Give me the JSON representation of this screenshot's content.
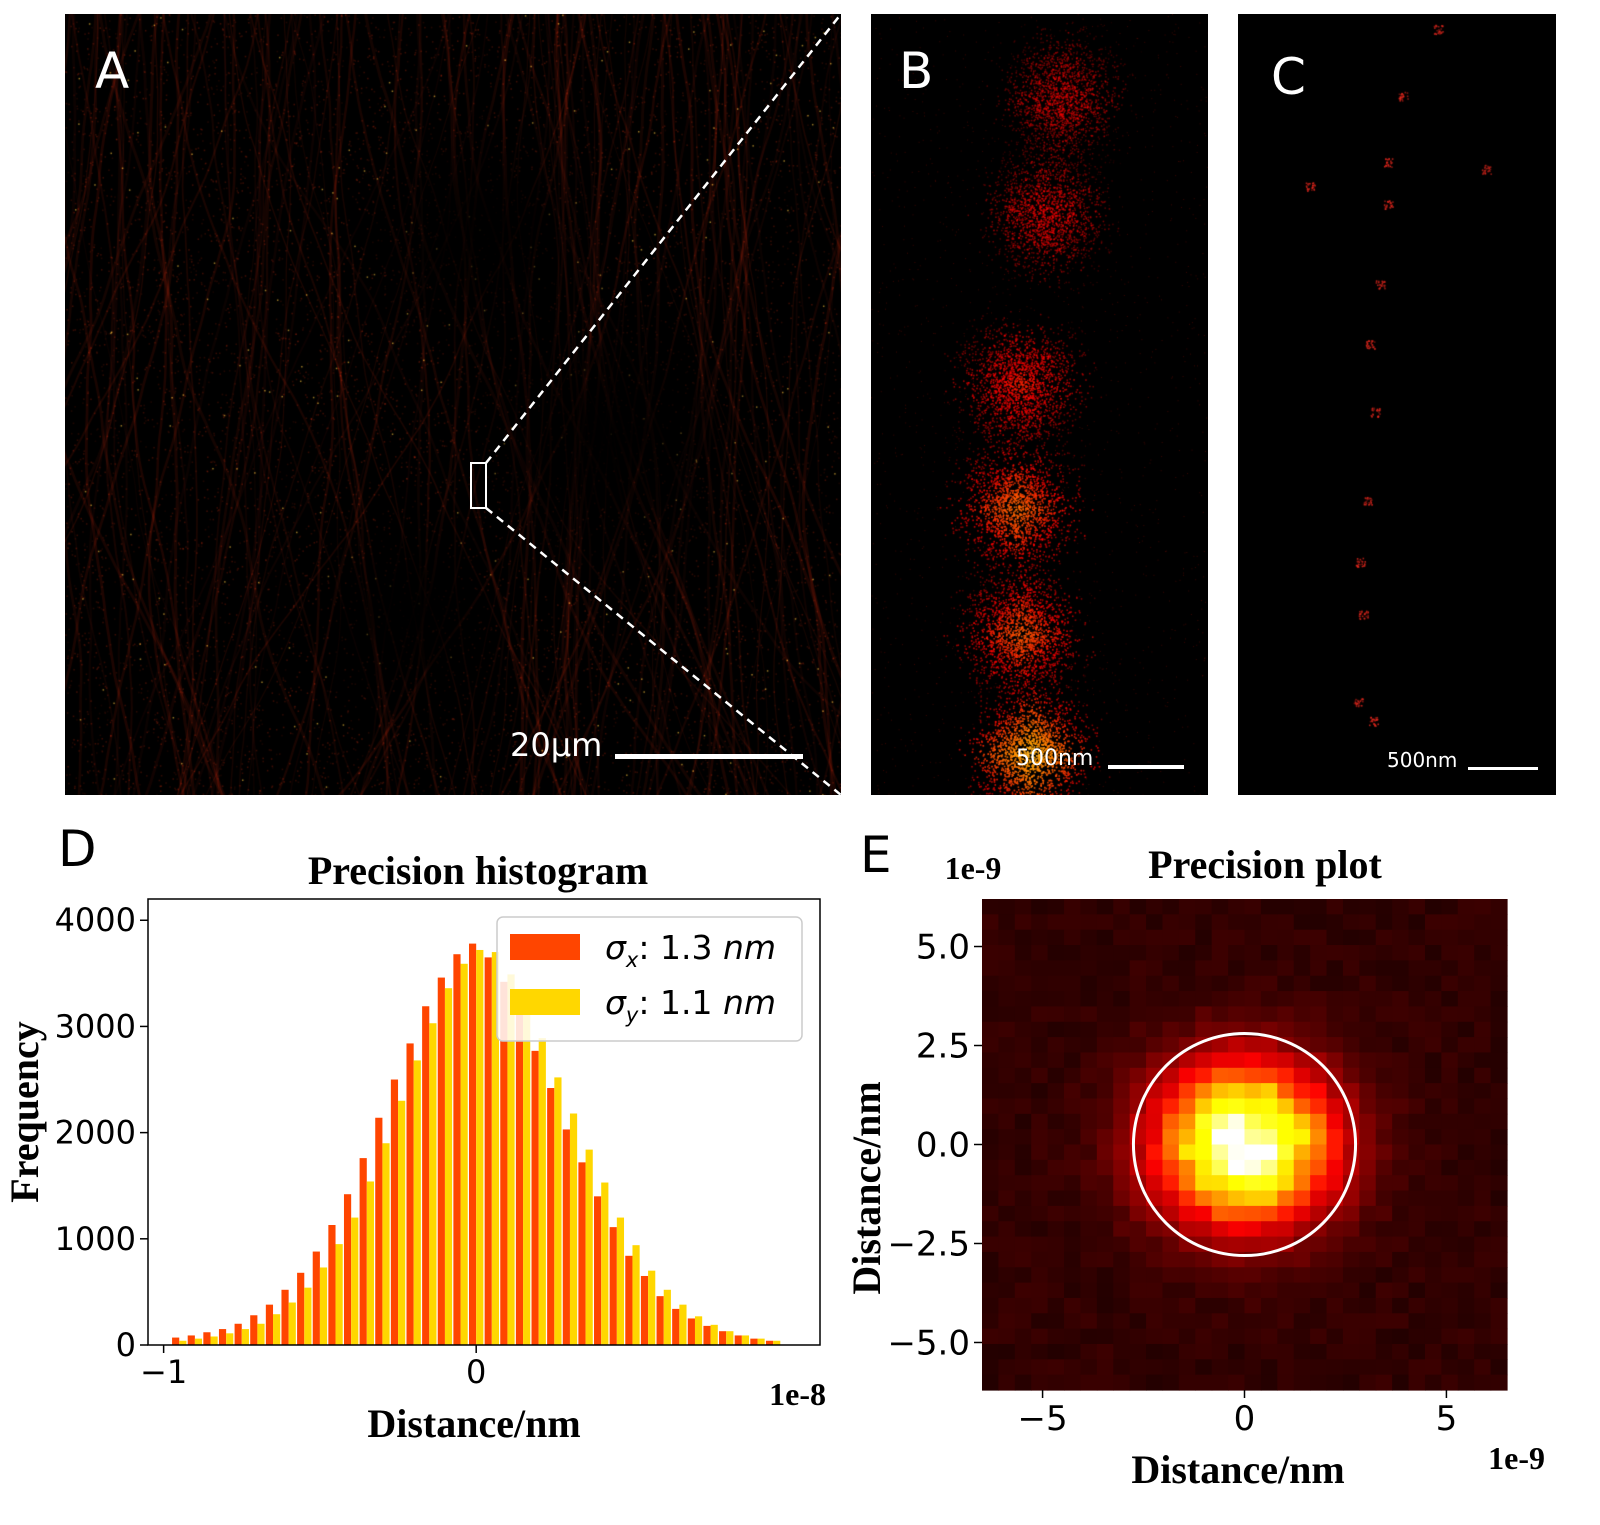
{
  "panels": {
    "a": {
      "letter": "A",
      "scale_label": "20µm"
    },
    "b": {
      "letter": "B",
      "scale_label": "500nm"
    },
    "c": {
      "letter": "C",
      "scale_label": "500nm"
    },
    "d": {
      "letter": "D"
    },
    "e": {
      "letter": "E"
    }
  },
  "colors": {
    "sigma_x": "#ff4500",
    "sigma_y": "#ffd700"
  },
  "chart_data": [
    {
      "type": "bar",
      "title": "Precision histogram",
      "xlabel": "Distance/nm",
      "ylabel": "Frequency",
      "x_offset_label": "1e-8",
      "xlim": [
        -1.05,
        1.1
      ],
      "ylim": [
        0,
        4200
      ],
      "xticks": [
        -1,
        0
      ],
      "xtick_labels": [
        "−1",
        "0"
      ],
      "yticks": [
        0,
        1000,
        2000,
        3000,
        4000
      ],
      "ytick_labels": [
        "0",
        "1000",
        "2000",
        "3000",
        "4000"
      ],
      "legend": [
        {
          "symbol": "σ",
          "sub": "x",
          "text": ": 1.3 ",
          "unit": "nm"
        },
        {
          "symbol": "σ",
          "sub": "y",
          "text": ": 1.1 ",
          "unit": "nm"
        }
      ],
      "bin_centers": [
        -0.95,
        -0.9,
        -0.85,
        -0.8,
        -0.75,
        -0.7,
        -0.65,
        -0.6,
        -0.55,
        -0.5,
        -0.45,
        -0.4,
        -0.35,
        -0.3,
        -0.25,
        -0.2,
        -0.15,
        -0.1,
        -0.05,
        0.0,
        0.05,
        0.1,
        0.15,
        0.2,
        0.25,
        0.3,
        0.35,
        0.4,
        0.45,
        0.5,
        0.55,
        0.6,
        0.65,
        0.7,
        0.75,
        0.8,
        0.85,
        0.9,
        0.95
      ],
      "series": [
        {
          "name": "sigma_x",
          "values": [
            70,
            90,
            120,
            150,
            200,
            280,
            380,
            520,
            680,
            880,
            1130,
            1420,
            1760,
            2140,
            2500,
            2840,
            3190,
            3460,
            3680,
            3780,
            3650,
            3420,
            3110,
            2770,
            2420,
            2030,
            1720,
            1400,
            1110,
            840,
            650,
            460,
            340,
            250,
            180,
            130,
            90,
            60,
            40
          ]
        },
        {
          "name": "sigma_y",
          "values": [
            40,
            60,
            80,
            110,
            150,
            200,
            290,
            400,
            540,
            730,
            950,
            1200,
            1540,
            1900,
            2300,
            2680,
            3030,
            3360,
            3590,
            3720,
            3700,
            3490,
            3200,
            2890,
            2520,
            2180,
            1840,
            1530,
            1200,
            940,
            700,
            520,
            380,
            270,
            190,
            130,
            90,
            60,
            40
          ]
        }
      ]
    },
    {
      "type": "heatmap",
      "title": "Precision plot",
      "xlabel": "Distance/nm",
      "ylabel": "Distance/nm",
      "x_offset_label": "1e-9",
      "y_offset_label": "1e-9",
      "xlim": [
        -6.5,
        6.5
      ],
      "ylim": [
        -6.2,
        6.2
      ],
      "xticks": [
        -5,
        0,
        5
      ],
      "xtick_labels": [
        "−5",
        "0",
        "5"
      ],
      "yticks": [
        5.0,
        2.5,
        0.0,
        -2.5,
        -5.0
      ],
      "ytick_labels": [
        "5.0",
        "2.5",
        "0.0",
        "−2.5",
        "−5.0"
      ],
      "bins": 32,
      "sigma_x": 1.3,
      "sigma_y": 1.1,
      "circle_radius": 2.75
    }
  ]
}
